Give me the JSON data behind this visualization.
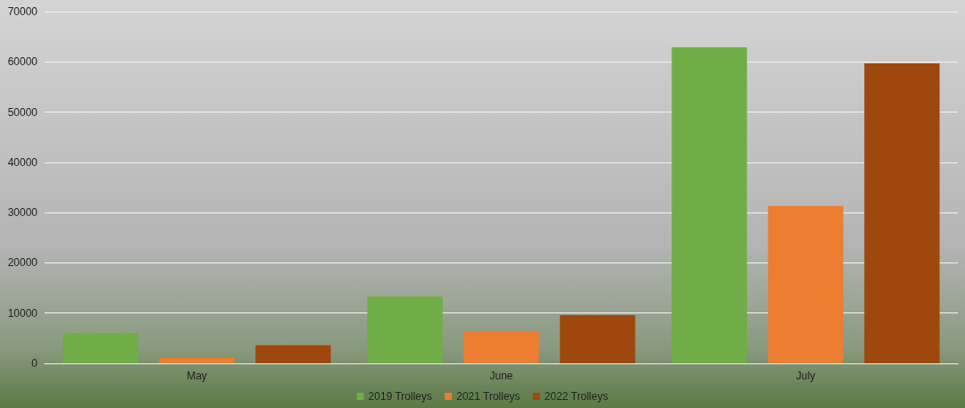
{
  "chart_data": {
    "type": "bar",
    "categories": [
      "May",
      "June",
      "July"
    ],
    "series": [
      {
        "name": "2019 Trolleys",
        "color": "#70ad47",
        "values": [
          6000,
          13300,
          62900
        ]
      },
      {
        "name": "2021 Trolleys",
        "color": "#ed7d31",
        "values": [
          1100,
          6300,
          31300
        ]
      },
      {
        "name": "2022 Trolleys",
        "color": "#9e480e",
        "values": [
          3600,
          9600,
          59700
        ]
      }
    ],
    "ylim": [
      0,
      70000
    ],
    "yticks": [
      0,
      10000,
      20000,
      30000,
      40000,
      50000,
      60000,
      70000
    ],
    "grid": "y",
    "legend": "bottom"
  }
}
